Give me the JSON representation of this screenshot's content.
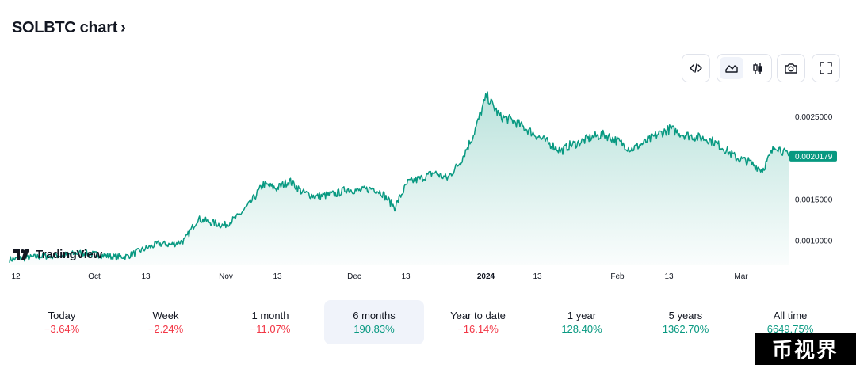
{
  "header": {
    "title": "SOLBTC chart",
    "chevron": "›"
  },
  "toolbar": {
    "embed_icon": "code-icon",
    "area_icon": "area-chart-icon",
    "candle_icon": "candlestick-icon",
    "snapshot_icon": "camera-icon",
    "fullscreen_icon": "fullscreen-icon",
    "active_style": "area"
  },
  "branding": {
    "logo_text": "TradingView"
  },
  "chart_data": {
    "type": "area",
    "title": "",
    "xlabel": "",
    "ylabel": "",
    "line_color": "#089981",
    "fill_color": "#089981",
    "x_ticks": [
      "12",
      "Oct",
      "13",
      "Nov",
      "13",
      "Dec",
      "13",
      "2024",
      "13",
      "Feb",
      "13",
      "Mar"
    ],
    "x_tick_bold": [
      false,
      false,
      false,
      false,
      false,
      false,
      false,
      true,
      false,
      false,
      false,
      false
    ],
    "y_ticks": [
      "0.0025000",
      "0.0020000",
      "0.0015000",
      "0.0010000"
    ],
    "y_tick_values": [
      0.0025,
      0.002,
      0.0015,
      0.001
    ],
    "ylim": [
      0.0007,
      0.00295
    ],
    "last_price_label": "0.0020179",
    "last_price": 0.0020179,
    "grid": false,
    "series": [
      {
        "x_index": [
          0,
          4,
          8,
          12,
          16,
          20,
          24,
          27,
          30,
          34,
          37,
          40,
          43,
          46,
          49,
          52,
          55,
          58,
          61,
          64,
          67,
          70,
          73,
          75,
          77,
          80,
          83,
          85,
          88,
          91,
          94,
          97,
          100,
          103,
          106,
          109,
          112,
          115,
          118,
          121,
          124,
          126,
          128,
          130,
          133,
          136,
          139,
          142,
          145,
          148,
          151,
          154,
          157,
          160,
          163,
          166,
          169,
          172,
          175,
          178
        ],
        "values": [
          0.00077,
          0.00079,
          0.00081,
          0.00082,
          0.00085,
          0.00083,
          0.0008,
          0.00081,
          0.00088,
          0.00096,
          0.00095,
          0.001,
          0.00126,
          0.00122,
          0.00118,
          0.00128,
          0.00145,
          0.00168,
          0.00163,
          0.00172,
          0.00158,
          0.00153,
          0.00155,
          0.00157,
          0.00162,
          0.0016,
          0.00163,
          0.00158,
          0.0014,
          0.0017,
          0.00175,
          0.00182,
          0.00175,
          0.00195,
          0.00228,
          0.00275,
          0.0025,
          0.00245,
          0.00235,
          0.00225,
          0.00215,
          0.00208,
          0.00215,
          0.00218,
          0.00225,
          0.00228,
          0.0022,
          0.0021,
          0.00218,
          0.00228,
          0.00235,
          0.00228,
          0.00225,
          0.00222,
          0.00212,
          0.002,
          0.00195,
          0.00185,
          0.00215,
          0.00202
        ]
      }
    ]
  },
  "ranges": [
    {
      "label": "Today",
      "value": "−3.64%",
      "sign": "neg",
      "active": false
    },
    {
      "label": "Week",
      "value": "−2.24%",
      "sign": "neg",
      "active": false
    },
    {
      "label": "1 month",
      "value": "−11.07%",
      "sign": "neg",
      "active": false
    },
    {
      "label": "6 months",
      "value": "190.83%",
      "sign": "pos",
      "active": true
    },
    {
      "label": "Year to date",
      "value": "−16.14%",
      "sign": "neg",
      "active": false
    },
    {
      "label": "1 year",
      "value": "128.40%",
      "sign": "pos",
      "active": false
    },
    {
      "label": "5 years",
      "value": "1362.70%",
      "sign": "pos",
      "active": false
    },
    {
      "label": "All time",
      "value": "6649.75%",
      "sign": "pos",
      "active": false
    }
  ],
  "watermark": {
    "text": "币视界"
  }
}
